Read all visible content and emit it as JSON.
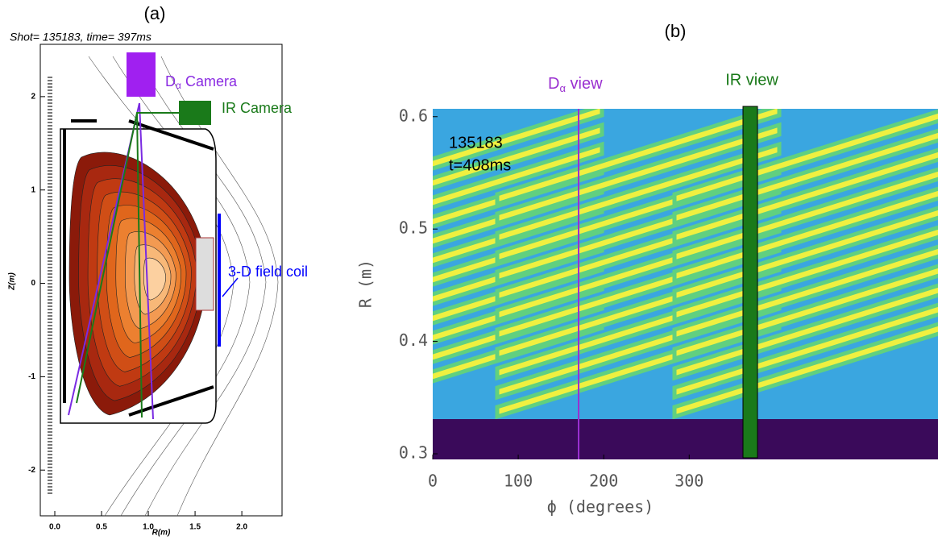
{
  "chart_data": [
    {
      "type": "contour",
      "label": "(a)",
      "title": "Shot= 135183, time= 397ms",
      "xlabel": "R(m)",
      "ylabel": "Z(m)",
      "xlim": [
        -0.155,
        2.43
      ],
      "ylim": [
        -2.49,
        2.56
      ],
      "xticks": [
        {
          "value": 0,
          "label": "0.0"
        },
        {
          "value": 0.5,
          "label": "0.5"
        },
        {
          "value": 1,
          "label": "1.0"
        },
        {
          "value": 1.5,
          "label": "1.5"
        },
        {
          "value": 2,
          "label": "2.0"
        }
      ],
      "yticks": [
        -2,
        -1,
        0,
        1,
        2
      ],
      "annotations": {
        "dalpha_camera": {
          "base": "D",
          "sub": "α",
          "rest": " Camera"
        },
        "ir_camera": "IR Camera",
        "coil": "3-D field coil"
      }
    },
    {
      "type": "heatmap",
      "label": "(b)",
      "xlabel": "ϕ (degrees)",
      "ylabel": "R (m)",
      "xlim": [
        0,
        591
      ],
      "ylim": [
        0.295,
        0.607
      ],
      "xticks": [
        0,
        100,
        200,
        300
      ],
      "yticks": [
        0.3,
        0.4,
        0.5,
        0.6
      ],
      "annotations": {
        "dalpha_view": {
          "base": "D",
          "sub": "α",
          "rest": " view"
        },
        "ir_view": "IR view",
        "shot": "135183",
        "time": "t=408ms"
      }
    }
  ]
}
